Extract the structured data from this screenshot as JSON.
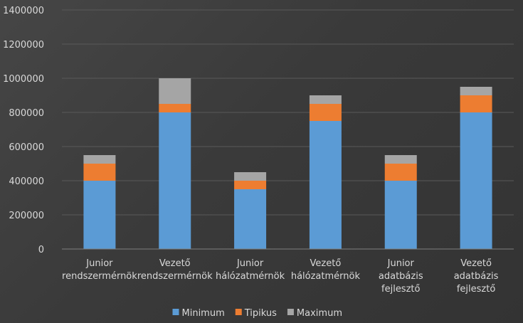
{
  "chart_data": {
    "type": "bar",
    "stacked": true,
    "categories": [
      [
        "Junior",
        "rendszermérnök"
      ],
      [
        "Vezető",
        "rendszermérnök"
      ],
      [
        "Junior",
        "hálózatmérnök"
      ],
      [
        "Vezető",
        "hálózatmérnök"
      ],
      [
        "Junior",
        "adatbázis",
        "fejlesztő"
      ],
      [
        "Vezető",
        "adatbázis",
        "fejlesztő"
      ]
    ],
    "series": [
      {
        "name": "Minimum",
        "color": "#5b9bd5",
        "values": [
          400000,
          800000,
          350000,
          750000,
          400000,
          800000
        ]
      },
      {
        "name": "Tipikus",
        "color": "#ed7d31",
        "values": [
          100000,
          50000,
          50000,
          100000,
          100000,
          100000
        ]
      },
      {
        "name": "Maximum",
        "color": "#a5a5a5",
        "values": [
          50000,
          150000,
          50000,
          50000,
          50000,
          50000
        ]
      }
    ],
    "ylim": [
      0,
      1400000
    ],
    "yticks": [
      "0",
      "200000",
      "400000",
      "600000",
      "800000",
      "1000000",
      "1200000",
      "1400000"
    ],
    "grid": true,
    "legend": "bottom"
  }
}
